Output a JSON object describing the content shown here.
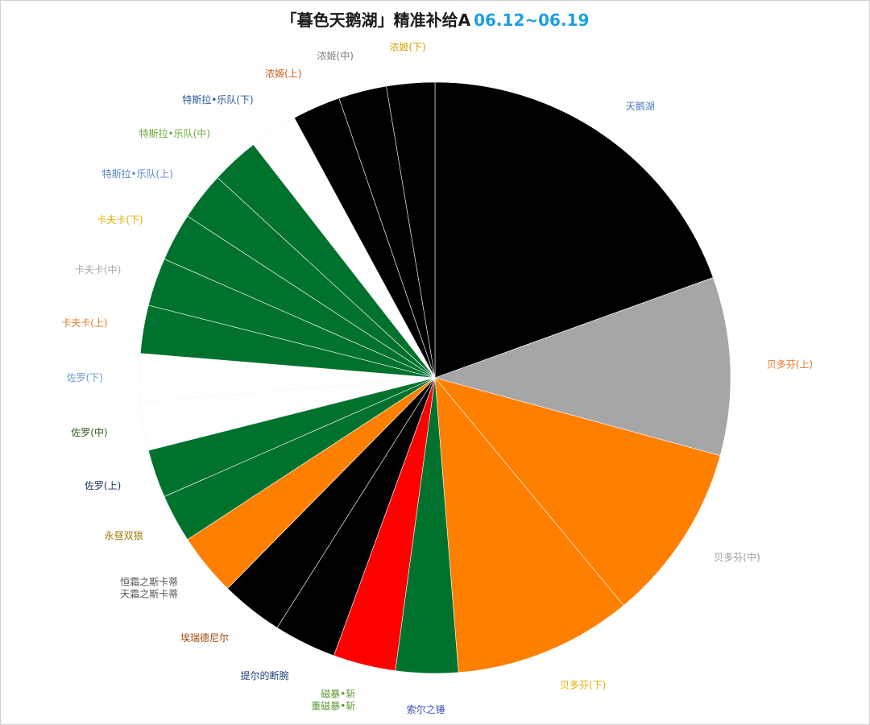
{
  "title": {
    "main": "「暮色天鹅湖」精准补给A",
    "dates": "06.12~06.19"
  },
  "chart_data": {
    "type": "pie",
    "title": "「暮色天鹅湖」精准补给A 06.12~06.19",
    "legend": "none",
    "slices": [
      {
        "label": "天鹅湖",
        "value": 20.0,
        "color": "#000000",
        "label_color": "#4a7ab8"
      },
      {
        "label": "贝多芬(上)",
        "value": 10.0,
        "color": "#a6a6a6",
        "label_color": "#e87722"
      },
      {
        "label": "贝多芬(中)",
        "value": 10.0,
        "color": "#ff7f00",
        "label_color": "#9a9a9a"
      },
      {
        "label": "贝多芬(下)",
        "value": 10.0,
        "color": "#ff7f00",
        "label_color": "#e0b000"
      },
      {
        "label": "索尔之锤",
        "value": 3.5,
        "color": "#00722e",
        "label_color": "#3a56b0"
      },
      {
        "label": "磁暴•斩\n重磁暴•斩",
        "value": 3.5,
        "color": "#ff0000",
        "label_color": "#5a9a30"
      },
      {
        "label": "提尔的断腕",
        "value": 3.5,
        "color": "#000000",
        "label_color": "#1f3f7a"
      },
      {
        "label": "埃瑞德尼尔",
        "value": 3.5,
        "color": "#000000",
        "label_color": "#a0480a"
      },
      {
        "label": "恒霜之斯卡蒂\n天霜之斯卡蒂",
        "value": 3.5,
        "color": "#ff7f00",
        "label_color": "#555555"
      },
      {
        "label": "永昼双狼",
        "value": 2.7,
        "color": "#00722e",
        "label_color": "#a07a00"
      },
      {
        "label": "佐罗(上)",
        "value": 2.7,
        "color": "#00722e",
        "label_color": "#1f3566"
      },
      {
        "label": "佐罗(中)",
        "value": 2.7,
        "color": "#ffffff",
        "label_color": "#2d5a1a"
      },
      {
        "label": "佐罗(下)",
        "value": 2.7,
        "color": "#ffffff",
        "label_color": "#6a9ad0"
      },
      {
        "label": "卡夫卡(上)",
        "value": 2.7,
        "color": "#00722e",
        "label_color": "#e87722"
      },
      {
        "label": "卡夫卡(中)",
        "value": 2.7,
        "color": "#00722e",
        "label_color": "#a6a6a6"
      },
      {
        "label": "卡夫卡(下)",
        "value": 2.7,
        "color": "#00722e",
        "label_color": "#e0b000"
      },
      {
        "label": "特斯拉•乐队(上)",
        "value": 2.7,
        "color": "#00722e",
        "label_color": "#5a85c8"
      },
      {
        "label": "特斯拉•乐队(中)",
        "value": 2.7,
        "color": "#00722e",
        "label_color": "#6aaa3a"
      },
      {
        "label": "特斯拉•乐队(下)",
        "value": 2.7,
        "color": "#ffffff",
        "label_color": "#2a5aa0"
      },
      {
        "label": "浓姬(上)",
        "value": 2.7,
        "color": "#000000",
        "label_color": "#c85a14"
      },
      {
        "label": "浓姬(中)",
        "value": 2.7,
        "color": "#000000",
        "label_color": "#7a7a7a"
      },
      {
        "label": "浓姬(下)",
        "value": 2.7,
        "color": "#000000",
        "label_color": "#d0a000"
      }
    ]
  }
}
